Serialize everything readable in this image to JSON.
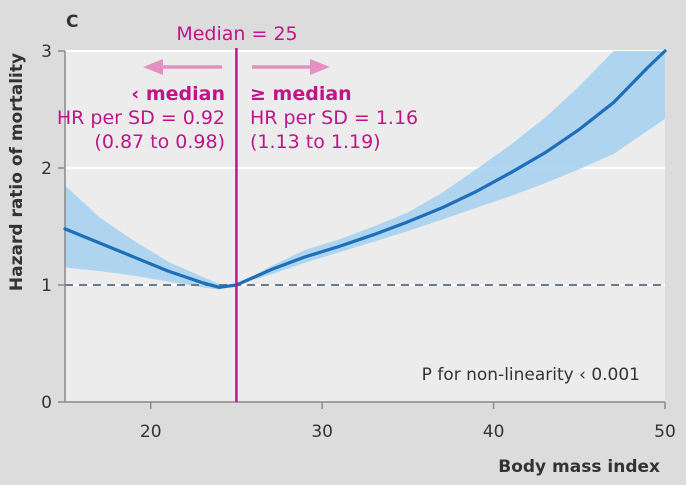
{
  "chart_data": {
    "type": "line",
    "panel_label": "C",
    "xlabel": "Body mass index",
    "ylabel": "Hazard ratio of mortality",
    "xlim": [
      15,
      50
    ],
    "ylim": [
      0,
      3
    ],
    "x_ticks": [
      20,
      30,
      40,
      50
    ],
    "y_ticks": [
      0,
      1,
      2,
      3
    ],
    "grid": "horizontal",
    "reference_line": {
      "y": 1,
      "style": "dashed"
    },
    "median_line": {
      "x": 25,
      "label": "Median = 25"
    },
    "series": [
      {
        "x": [
          15,
          17,
          19,
          21,
          23,
          24,
          25,
          27,
          29,
          31,
          33,
          35,
          37,
          39,
          41,
          43,
          45,
          47,
          49,
          50
        ],
        "y": [
          1.48,
          1.36,
          1.24,
          1.12,
          1.02,
          0.98,
          1.0,
          1.13,
          1.24,
          1.33,
          1.43,
          1.54,
          1.66,
          1.8,
          1.96,
          2.13,
          2.33,
          2.56,
          2.86,
          3.05
        ],
        "lower": [
          1.15,
          1.12,
          1.08,
          1.03,
          0.98,
          0.96,
          1.0,
          1.09,
          1.19,
          1.28,
          1.37,
          1.46,
          1.56,
          1.66,
          1.76,
          1.87,
          1.99,
          2.12,
          2.32,
          2.42
        ],
        "upper": [
          1.85,
          1.58,
          1.38,
          1.2,
          1.07,
          1.01,
          1.0,
          1.16,
          1.3,
          1.39,
          1.5,
          1.62,
          1.79,
          1.99,
          2.2,
          2.43,
          2.7,
          3.01,
          3.3,
          3.5
        ]
      }
    ],
    "annotations": {
      "left_label": "‹ median",
      "left_hr": "HR per SD = 0.92",
      "left_ci": "(0.87 to 0.98)",
      "right_label": "≥ median",
      "right_hr": "HR per SD = 1.16",
      "right_ci": "(1.13 to 1.19)",
      "p_note": "P for non-linearity ‹ 0.001"
    },
    "colors": {
      "line": "#1c6fb8",
      "band": "#a9d1ef",
      "median": "#c0148a",
      "arrow": "#e58fc3",
      "reference": "#6b7a8f",
      "grid": "#ffffff",
      "plot_bg": "#ececec",
      "background": "#dcdcdc"
    }
  }
}
